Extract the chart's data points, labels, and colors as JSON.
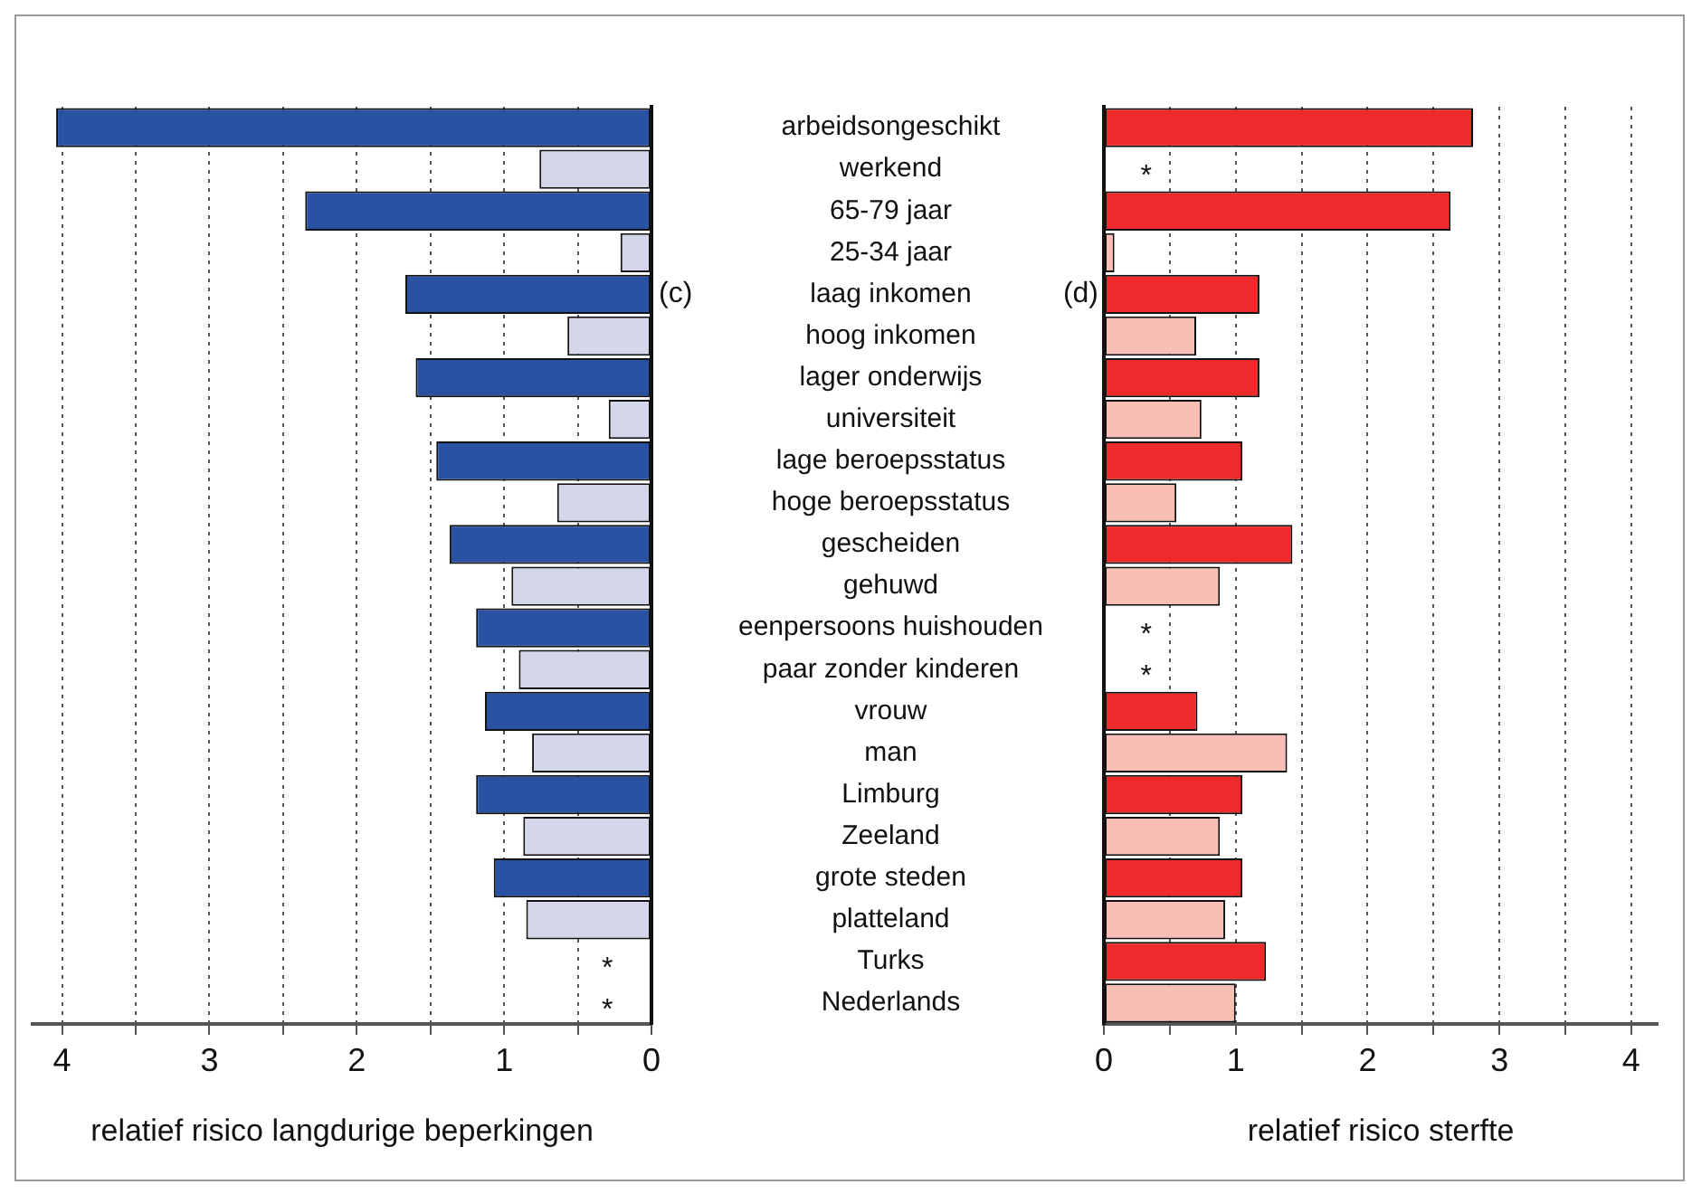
{
  "chart_data": [
    {
      "type": "bar",
      "orientation": "horizontal",
      "categories": [
        "arbeidsongeschikt",
        "werkend",
        "65-79 jaar",
        "25-34 jaar",
        "laag inkomen",
        "hoog inkomen",
        "lager onderwijs",
        "universiteit",
        "lage beroepsstatus",
        "hoge beroepsstatus",
        "gescheiden",
        "gehuwd",
        "eenpersoons huishouden",
        "paar zonder kinderen",
        "vrouw",
        "man",
        "Limburg",
        "Zeeland",
        "grote steden",
        "platteland",
        "Turks",
        "Nederlands"
      ],
      "values": [
        4.04,
        0.76,
        2.35,
        0.21,
        1.67,
        0.57,
        1.6,
        0.29,
        1.46,
        0.64,
        1.37,
        0.95,
        1.19,
        0.9,
        1.13,
        0.81,
        1.19,
        0.87,
        1.07,
        0.85,
        null,
        null
      ],
      "colors": [
        "#2a52a3",
        "#d4d7ea",
        "#2a52a3",
        "#d4d7ea",
        "#2a52a3",
        "#d4d7ea",
        "#2a52a3",
        "#d4d7ea",
        "#2a52a3",
        "#d4d7ea",
        "#2a52a3",
        "#d4d7ea",
        "#2a52a3",
        "#d4d7ea",
        "#2a52a3",
        "#d4d7ea",
        "#2a52a3",
        "#d4d7ea",
        "#2a52a3",
        "#d4d7ea",
        "#2a52a3",
        "#d4d7ea"
      ],
      "xlim": [
        4.2,
        0
      ],
      "xticks": [
        4,
        {
          "value": 3.5,
          "label": null
        },
        3,
        {
          "value": 2.5,
          "label": null
        },
        2,
        {
          "value": 1.5,
          "label": null
        },
        1,
        {
          "value": 0.5,
          "label": null
        },
        0
      ],
      "xlabel": "relatief risico langdurige beperkingen",
      "grid": "x",
      "annotations": [
        "(c)",
        "*",
        "*"
      ]
    },
    {
      "type": "bar",
      "orientation": "horizontal",
      "categories": [
        "arbeidsongeschikt",
        "werkend",
        "65-79 jaar",
        "25-34 jaar",
        "laag inkomen",
        "hoog inkomen",
        "lager onderwijs",
        "universiteit",
        "lage beroepsstatus",
        "hoge beroepsstatus",
        "gescheiden",
        "gehuwd",
        "eenpersoons huishouden",
        "paar zonder kinderen",
        "vrouw",
        "man",
        "Limburg",
        "Zeeland",
        "grote steden",
        "platteland",
        "Turks",
        "Nederlands"
      ],
      "values": [
        2.8,
        null,
        2.63,
        0.08,
        1.18,
        0.7,
        1.18,
        0.74,
        1.05,
        0.55,
        1.43,
        0.88,
        null,
        null,
        0.71,
        1.39,
        1.05,
        0.88,
        1.05,
        0.92,
        1.23,
        1.0
      ],
      "colors": [
        "#ee2a2a",
        "#f9bfb4",
        "#ee2a2a",
        "#f9bfb4",
        "#ee2a2a",
        "#f9bfb4",
        "#ee2a2a",
        "#f9bfb4",
        "#ee2a2a",
        "#f9bfb4",
        "#ee2a2a",
        "#f9bfb4",
        "#ee2a2a",
        "#f9bfb4",
        "#ee2a2a",
        "#f9bfb4",
        "#ee2a2a",
        "#f9bfb4",
        "#ee2a2a",
        "#f9bfb4",
        "#ee2a2a",
        "#f9bfb4"
      ],
      "xlim": [
        0,
        4.2
      ],
      "xticks": [
        0,
        {
          "value": 0.5,
          "label": null
        },
        1,
        {
          "value": 1.5,
          "label": null
        },
        2,
        {
          "value": 2.5,
          "label": null
        },
        3,
        {
          "value": 3.5,
          "label": null
        },
        4
      ],
      "xlabel": "relatief risico sterfte",
      "grid": "x",
      "tick_labels": "x",
      "annotations": [
        "(d)",
        "*",
        "*",
        "*"
      ]
    }
  ]
}
